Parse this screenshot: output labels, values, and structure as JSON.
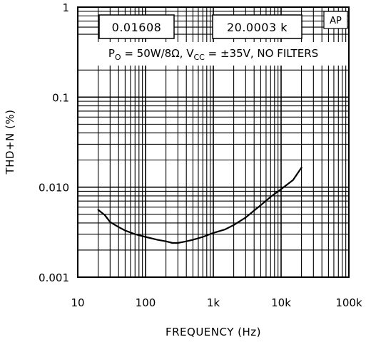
{
  "chart_data": {
    "type": "line",
    "title": "",
    "xlabel": "FREQUENCY (Hz)",
    "ylabel": "THD+N (%)",
    "x_scale": "log",
    "y_scale": "log",
    "xlim": [
      10,
      100000
    ],
    "ylim": [
      0.001,
      1
    ],
    "grid": true,
    "x_ticks": [
      {
        "value": 10,
        "label": "10"
      },
      {
        "value": 100,
        "label": "100"
      },
      {
        "value": 1000,
        "label": "1k"
      },
      {
        "value": 10000,
        "label": "10k"
      },
      {
        "value": 100000,
        "label": "100k"
      }
    ],
    "y_ticks": [
      {
        "value": 1,
        "label": "1"
      },
      {
        "value": 0.1,
        "label": "0.1"
      },
      {
        "value": 0.01,
        "label": "0.010"
      },
      {
        "value": 0.001,
        "label": "0.001"
      }
    ],
    "annotations": {
      "readout_value": "0.01608",
      "readout_frequency": "20.0003 k",
      "badge": "AP",
      "conditions": {
        "p": "P",
        "p_sub": "O",
        "p_rest": " = 50W/8",
        "omega": "Ω",
        "sep": ", ",
        "v": "V",
        "v_sub": "CC",
        "v_rest": " = ±35V, NO FILTERS"
      }
    },
    "series": [
      {
        "x": [
          20,
          25,
          30,
          40,
          50,
          70,
          100,
          150,
          200,
          250,
          300,
          400,
          500,
          700,
          1000,
          1500,
          2000,
          3000,
          4000,
          5000,
          7000,
          10000,
          15000,
          20000
        ],
        "y": [
          0.0056,
          0.0049,
          0.0041,
          0.0036,
          0.0033,
          0.003,
          0.0028,
          0.0026,
          0.0025,
          0.0024,
          0.0024,
          0.0025,
          0.0026,
          0.0028,
          0.0031,
          0.0034,
          0.0038,
          0.0046,
          0.0055,
          0.0063,
          0.0078,
          0.0095,
          0.012,
          0.0165
        ]
      }
    ]
  }
}
